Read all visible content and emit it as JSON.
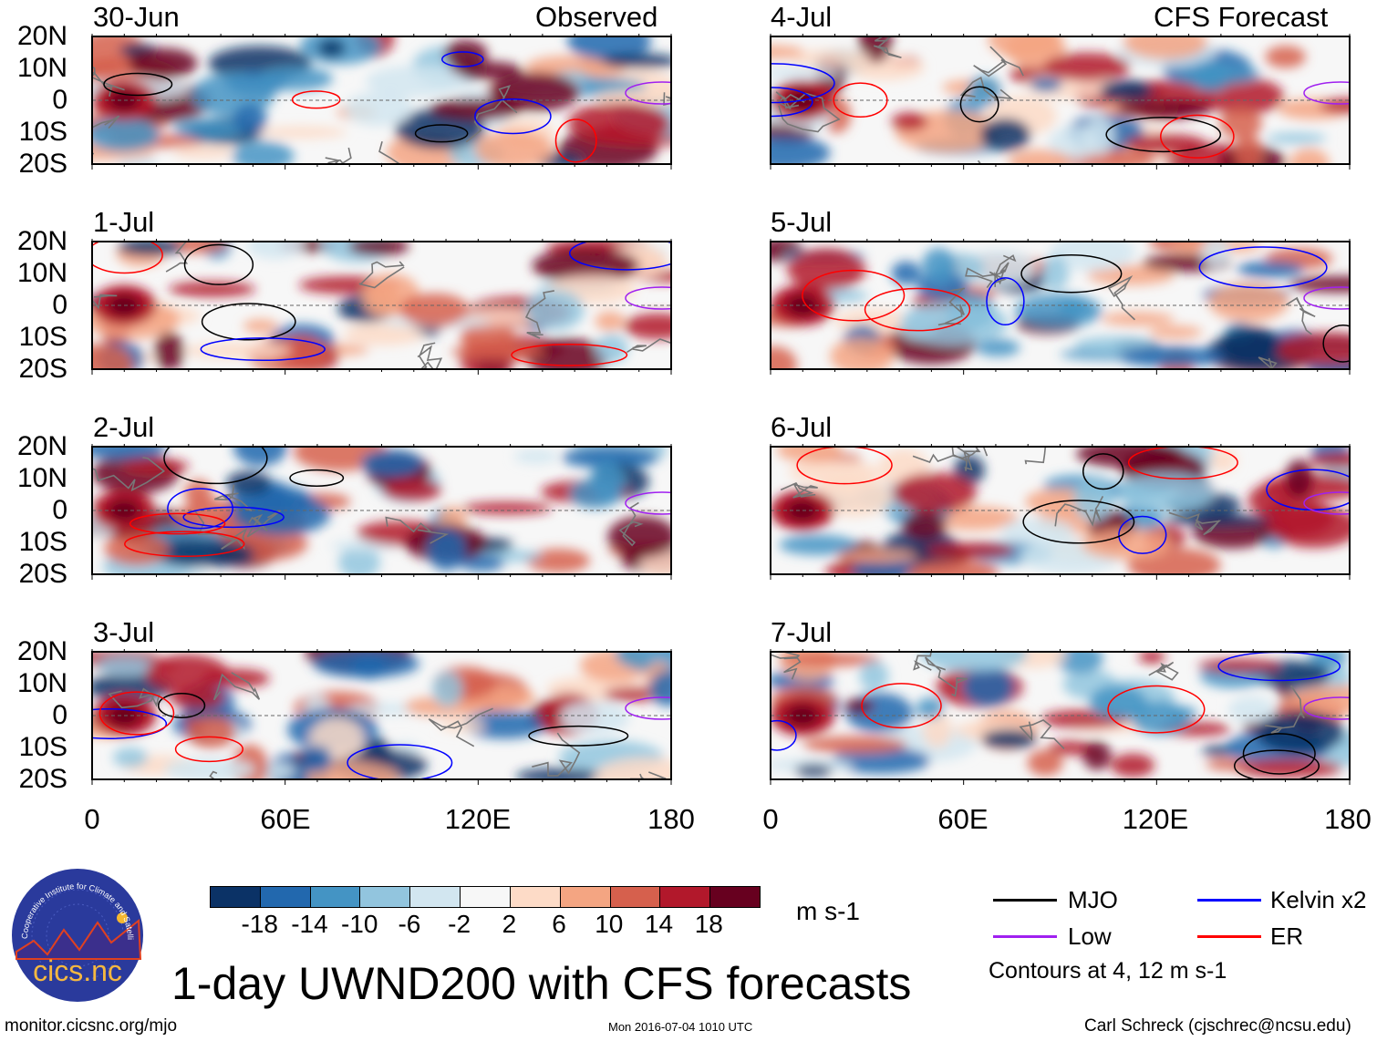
{
  "header": {
    "left_label": "Observed",
    "right_label": "CFS Forecast"
  },
  "panels_left": [
    {
      "date": "30-Jun"
    },
    {
      "date": "1-Jul"
    },
    {
      "date": "2-Jul"
    },
    {
      "date": "3-Jul"
    }
  ],
  "panels_right": [
    {
      "date": "4-Jul"
    },
    {
      "date": "5-Jul"
    },
    {
      "date": "6-Jul"
    },
    {
      "date": "7-Jul"
    }
  ],
  "lat_labels": [
    "20N",
    "10N",
    "0",
    "10S",
    "20S"
  ],
  "lon_labels": [
    "0",
    "60E",
    "120E",
    "180"
  ],
  "colorbar": {
    "colors": [
      "#0b3266",
      "#2268ae",
      "#4494c4",
      "#92c5de",
      "#d2e6f0",
      "#f7f7f7",
      "#fddbc7",
      "#f4a582",
      "#d6604d",
      "#b2182b",
      "#67001f"
    ],
    "labels": [
      "-18",
      "-14",
      "-10",
      "-6",
      "-2",
      "2",
      "6",
      "10",
      "14",
      "18"
    ],
    "units": "m s-1"
  },
  "legend": {
    "items": [
      {
        "label": "MJO",
        "color": "#000000"
      },
      {
        "label": "Kelvin x2",
        "color": "#0000ff"
      },
      {
        "label": "Low",
        "color": "#a020f0"
      },
      {
        "label": "ER",
        "color": "#ff0000"
      }
    ],
    "note": "Contours at 4, 12 m s-1"
  },
  "logo": {
    "text": "cics.nc",
    "ring_text": "Cooperative Institute for Climate and Satellites"
  },
  "title": "1-day UWND200 with CFS forecasts",
  "footer": {
    "url": "monitor.cicsnc.org/mjo",
    "timestamp": "Mon 2016-07-04 1010 UTC",
    "author": "Carl Schreck (cjschrec@ncsu.edu)"
  }
}
